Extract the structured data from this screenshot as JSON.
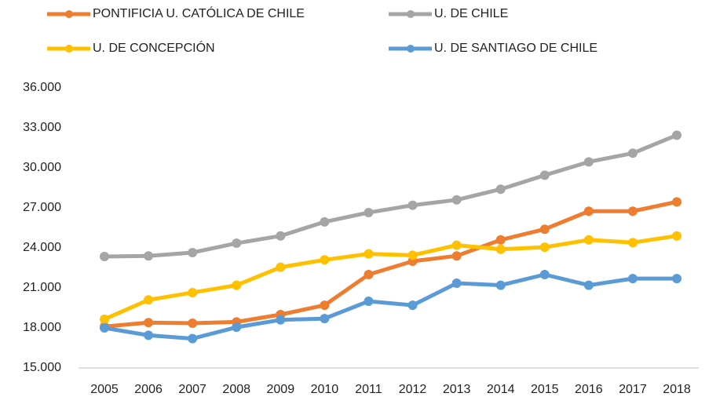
{
  "chart_data": {
    "type": "line",
    "categories": [
      "2005",
      "2006",
      "2007",
      "2008",
      "2009",
      "2010",
      "2011",
      "2012",
      "2013",
      "2014",
      "2015",
      "2016",
      "2017",
      "2018"
    ],
    "series": [
      {
        "name": "PONTIFICIA U. CATÓLICA DE CHILE",
        "color": "#ed7d31",
        "values": [
          18100,
          18400,
          18350,
          18450,
          19000,
          19700,
          22000,
          23000,
          23400,
          24600,
          25400,
          26750,
          26750,
          27450
        ]
      },
      {
        "name": "U. DE CHILE",
        "color": "#a5a5a5",
        "values": [
          23350,
          23400,
          23650,
          24350,
          24900,
          25950,
          26650,
          27200,
          27600,
          28400,
          29450,
          30450,
          31100,
          32450
        ]
      },
      {
        "name": "U. DE CONCEPCIÓN",
        "color": "#ffc000",
        "values": [
          18650,
          20100,
          20650,
          21200,
          22550,
          23100,
          23550,
          23450,
          24200,
          23900,
          24050,
          24600,
          24400,
          24900
        ]
      },
      {
        "name": "U. DE SANTIAGO DE CHILE",
        "color": "#5b9bd5",
        "values": [
          18000,
          17450,
          17200,
          18050,
          18600,
          18700,
          20000,
          19700,
          21350,
          21200,
          22000,
          21200,
          21700,
          21700
        ]
      }
    ],
    "ylim": [
      15000,
      36000
    ],
    "yticks": [
      {
        "value": 15000,
        "label": "15.000"
      },
      {
        "value": 18000,
        "label": "18.000"
      },
      {
        "value": 21000,
        "label": "21.000"
      },
      {
        "value": 24000,
        "label": "24.000"
      },
      {
        "value": 27000,
        "label": "27.000"
      },
      {
        "value": 30000,
        "label": "30.000"
      },
      {
        "value": 33000,
        "label": "33.000"
      },
      {
        "value": 36000,
        "label": "36.000"
      }
    ],
    "grid": false
  }
}
